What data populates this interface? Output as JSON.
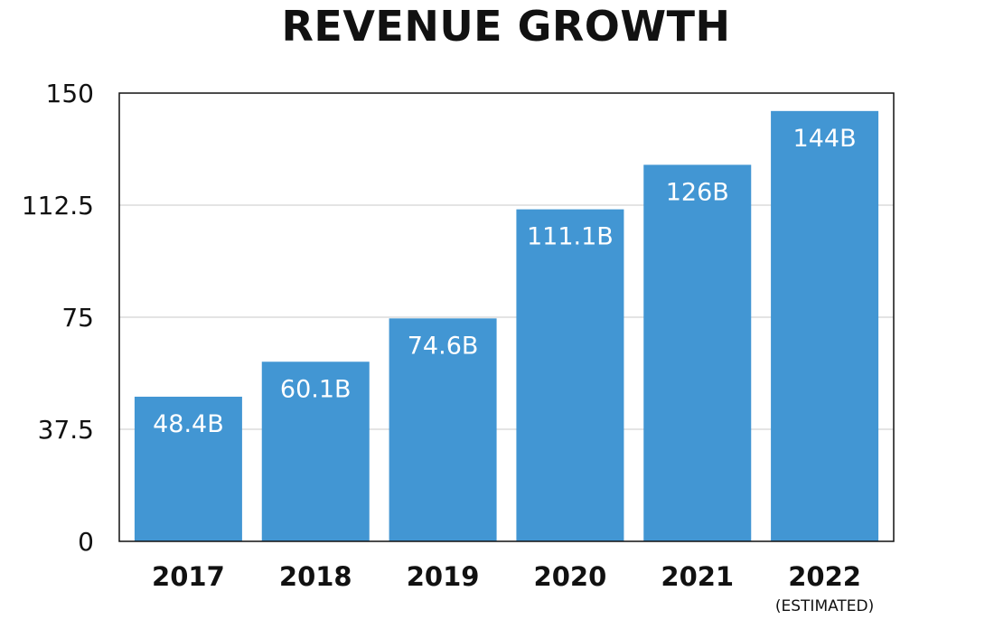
{
  "chart_data": {
    "type": "bar",
    "title": "REVENUE GROWTH",
    "xlabel": "",
    "ylabel": "",
    "categories": [
      "2017",
      "2018",
      "2019",
      "2020",
      "2021",
      "2022"
    ],
    "category_notes": [
      "",
      "",
      "",
      "",
      "",
      "(ESTIMATED)"
    ],
    "values": [
      48.4,
      60.1,
      74.6,
      111.1,
      126,
      144
    ],
    "data_labels": [
      "48.4B",
      "60.1B",
      "74.6B",
      "111.1B",
      "126B",
      "144B"
    ],
    "ylim": [
      0,
      150
    ],
    "yticks": [
      0,
      37.5,
      75,
      112.5,
      150
    ],
    "ytick_labels": [
      "0",
      "37.5",
      "75",
      "112.5",
      "150"
    ],
    "grid": true,
    "legend": "none",
    "bar_color": "#4296d3",
    "grid_color": "#c8c8c8"
  }
}
